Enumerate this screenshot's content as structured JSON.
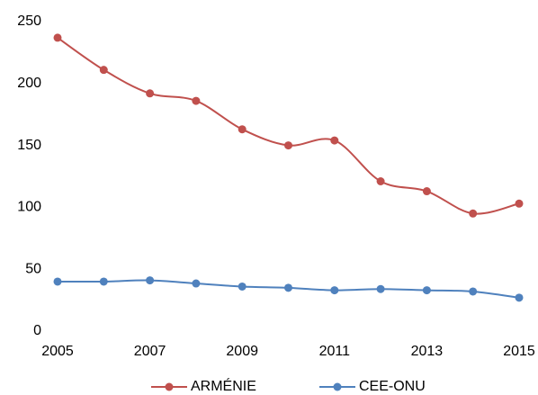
{
  "chart_data": {
    "type": "line",
    "x": [
      2005,
      2006,
      2007,
      2008,
      2009,
      2010,
      2011,
      2012,
      2013,
      2014,
      2015
    ],
    "series": [
      {
        "name": "ARMÉNIE",
        "color": "#c0504d",
        "values": [
          237,
          211,
          192,
          186,
          163,
          150,
          154,
          121,
          113,
          95,
          103
        ]
      },
      {
        "name": "CEE-ONU",
        "color": "#4f81bd",
        "values": [
          40,
          40,
          41,
          38.5,
          36,
          35,
          33,
          34,
          33,
          32,
          27
        ]
      }
    ],
    "xlim": [
      2005,
      2015
    ],
    "xticks": [
      2005,
      2007,
      2009,
      2011,
      2013,
      2015
    ],
    "ylim": [
      0,
      250
    ],
    "yticks": [
      0,
      50,
      100,
      150,
      200,
      250
    ],
    "grid": false,
    "legend": "bottom",
    "smooth": true
  }
}
